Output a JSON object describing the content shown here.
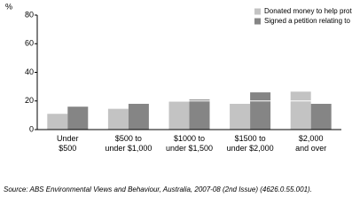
{
  "chart_data": {
    "type": "bar",
    "y_label": "%",
    "categories": [
      [
        "Under",
        "$500"
      ],
      [
        "$500 to",
        "under $1,000"
      ],
      [
        "$1000 to",
        "under $1,500"
      ],
      [
        "$1500 to",
        "under $2,000"
      ],
      [
        "$2,000",
        "and over"
      ]
    ],
    "series": [
      {
        "name": "Donated money to help protect the environment",
        "color": "#c3c3c3",
        "values": [
          11,
          14.5,
          19.5,
          18,
          26.5
        ]
      },
      {
        "name": "Signed a petition relating to any environmental issues",
        "color": "#858585",
        "values": [
          16,
          18,
          21,
          26,
          18
        ]
      }
    ],
    "ylim": [
      0,
      80
    ],
    "yticks": [
      0,
      20,
      40,
      60,
      80
    ],
    "grid": true,
    "source": "Source: ABS Environmental Views and Behaviour, Australia, 2007-08 (2nd Issue) (4626.0.55.001)."
  }
}
